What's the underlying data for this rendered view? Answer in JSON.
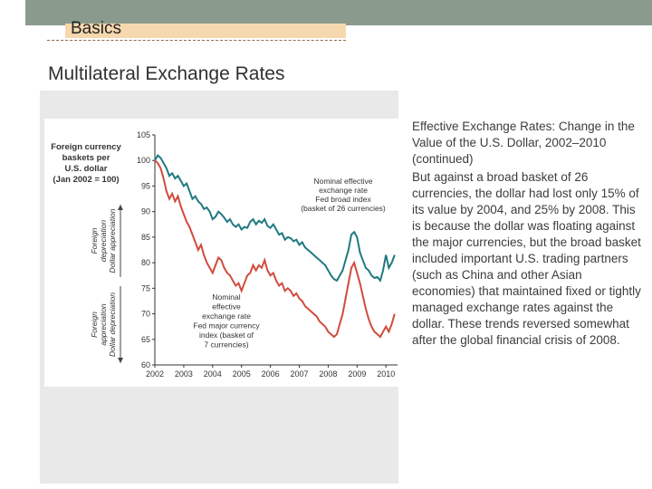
{
  "header": {
    "section": "Basics",
    "title": "Multilateral Exchange Rates"
  },
  "body_text": {
    "subtitle": "Effective Exchange Rates: Change in the Value of the U.S. Dollar, 2002–2010 (continued)",
    "paragraph": "But against a broad basket of 26 currencies, the dollar had lost only 15% of its value by 2004, and 25% by 2008. This is because the dollar was floating against the major currencies, but the broad basket included important U.S. trading partners (such as China and other Asian economies) that maintained fixed or tightly managed exchange rates against the dollar. These trends reversed somewhat after the global financial crisis of 2008."
  },
  "colors": {
    "broad": "#1f7a80",
    "major": "#d14b3d",
    "header_tab": "#f6d8ae",
    "topbar": "#8a9b8d"
  },
  "chart_data": {
    "type": "line",
    "ylabel": "Foreign currency baskets per U.S. dollar (Jan 2002 = 100)",
    "ylim": [
      60,
      105
    ],
    "y_ticks": [
      "105",
      "100",
      "95",
      "90",
      "85",
      "80",
      "75",
      "70",
      "65",
      "60"
    ],
    "xlim": [
      2002,
      2010.4
    ],
    "x_ticks": [
      "2002",
      "2003",
      "2004",
      "2005",
      "2006",
      "2007",
      "2008",
      "2009",
      "2010"
    ],
    "arrow_upper": [
      "Foreign",
      "depreciation",
      "Dollar appreciation"
    ],
    "arrow_lower": [
      "Foreign",
      "appreciation",
      "Dollar depreciation"
    ],
    "series": [
      {
        "name": "Nominal effective exchange rate Fed broad index (basket of 26 currencies)",
        "label_lines": [
          "Nominal effective",
          "exchange rate",
          "Fed broad index",
          "(basket of 26 currencies)"
        ],
        "x": [
          2002.0,
          2002.1,
          2002.2,
          2002.3,
          2002.4,
          2002.5,
          2002.6,
          2002.7,
          2002.8,
          2002.9,
          2003.0,
          2003.1,
          2003.2,
          2003.3,
          2003.4,
          2003.5,
          2003.6,
          2003.7,
          2003.8,
          2003.9,
          2004.0,
          2004.1,
          2004.2,
          2004.3,
          2004.4,
          2004.5,
          2004.6,
          2004.7,
          2004.8,
          2004.9,
          2005.0,
          2005.1,
          2005.2,
          2005.3,
          2005.4,
          2005.5,
          2005.6,
          2005.7,
          2005.8,
          2005.9,
          2006.0,
          2006.1,
          2006.2,
          2006.3,
          2006.4,
          2006.5,
          2006.6,
          2006.7,
          2006.8,
          2006.9,
          2007.0,
          2007.1,
          2007.2,
          2007.3,
          2007.4,
          2007.5,
          2007.6,
          2007.7,
          2007.8,
          2007.9,
          2008.0,
          2008.1,
          2008.2,
          2008.3,
          2008.4,
          2008.5,
          2008.6,
          2008.7,
          2008.8,
          2008.9,
          2009.0,
          2009.1,
          2009.2,
          2009.3,
          2009.4,
          2009.5,
          2009.6,
          2009.7,
          2009.8,
          2009.9,
          2010.0,
          2010.1,
          2010.2,
          2010.3
        ],
        "values": [
          100,
          101,
          100.5,
          99.5,
          98.5,
          97,
          97.5,
          96.5,
          97,
          96,
          95,
          95.5,
          94,
          92.5,
          93,
          92,
          91.5,
          90.5,
          90.8,
          90,
          88.5,
          89,
          90,
          89.5,
          88.8,
          88,
          88.5,
          87.5,
          87,
          87.5,
          86.5,
          87,
          86.8,
          88,
          88.5,
          87.5,
          88.2,
          87.8,
          88.5,
          87.2,
          86.8,
          87.5,
          86.5,
          85.5,
          85.8,
          84.5,
          85,
          84.8,
          84.2,
          84.5,
          83.5,
          84,
          83,
          82.5,
          82,
          81.5,
          81,
          80.5,
          80,
          79.5,
          78.5,
          77.5,
          76.8,
          76.5,
          77.5,
          78.5,
          80.5,
          82.5,
          85.5,
          86,
          85,
          82,
          80.5,
          79,
          78.5,
          77.5,
          77,
          77.2,
          76.5,
          78.5,
          81.5,
          79,
          80,
          81.5
        ]
      },
      {
        "name": "Nominal effective exchange rate Fed major currency index (basket of 7 currencies)",
        "label_lines": [
          "Nominal",
          "effective",
          "exchange rate",
          "Fed major currency",
          "index (basket of",
          "7 currencies)"
        ],
        "x": [
          2002.0,
          2002.1,
          2002.2,
          2002.3,
          2002.4,
          2002.5,
          2002.6,
          2002.7,
          2002.8,
          2002.9,
          2003.0,
          2003.1,
          2003.2,
          2003.3,
          2003.4,
          2003.5,
          2003.6,
          2003.7,
          2003.8,
          2003.9,
          2004.0,
          2004.1,
          2004.2,
          2004.3,
          2004.4,
          2004.5,
          2004.6,
          2004.7,
          2004.8,
          2004.9,
          2005.0,
          2005.1,
          2005.2,
          2005.3,
          2005.4,
          2005.5,
          2005.6,
          2005.7,
          2005.8,
          2005.9,
          2006.0,
          2006.1,
          2006.2,
          2006.3,
          2006.4,
          2006.5,
          2006.6,
          2006.7,
          2006.8,
          2006.9,
          2007.0,
          2007.1,
          2007.2,
          2007.3,
          2007.4,
          2007.5,
          2007.6,
          2007.7,
          2007.8,
          2007.9,
          2008.0,
          2008.1,
          2008.2,
          2008.3,
          2008.4,
          2008.5,
          2008.6,
          2008.7,
          2008.8,
          2008.9,
          2009.0,
          2009.1,
          2009.2,
          2009.3,
          2009.4,
          2009.5,
          2009.6,
          2009.7,
          2009.8,
          2009.9,
          2010.0,
          2010.1,
          2010.2,
          2010.3
        ],
        "values": [
          100,
          99.5,
          98.5,
          96.5,
          94,
          92.5,
          93.5,
          92,
          93,
          91,
          89.5,
          88,
          87,
          85.5,
          84,
          82.5,
          83.5,
          81.5,
          80,
          79,
          78,
          79.5,
          81,
          80.5,
          79,
          78,
          77.5,
          76.5,
          75.5,
          76,
          74.5,
          76,
          77.5,
          78,
          79.5,
          78.5,
          79.5,
          79,
          80.5,
          78.5,
          77.5,
          78,
          76.5,
          75.5,
          76,
          74.5,
          75,
          74.5,
          73.5,
          74,
          73,
          72.5,
          71.5,
          71,
          70.5,
          70,
          69.5,
          68.5,
          68,
          67.5,
          66.5,
          66,
          65.5,
          66,
          68,
          70,
          73,
          76,
          79,
          80,
          78,
          76,
          73.5,
          71,
          69,
          67.5,
          66.5,
          66,
          65.5,
          66.5,
          67.5,
          66.5,
          68,
          70
        ]
      }
    ]
  }
}
